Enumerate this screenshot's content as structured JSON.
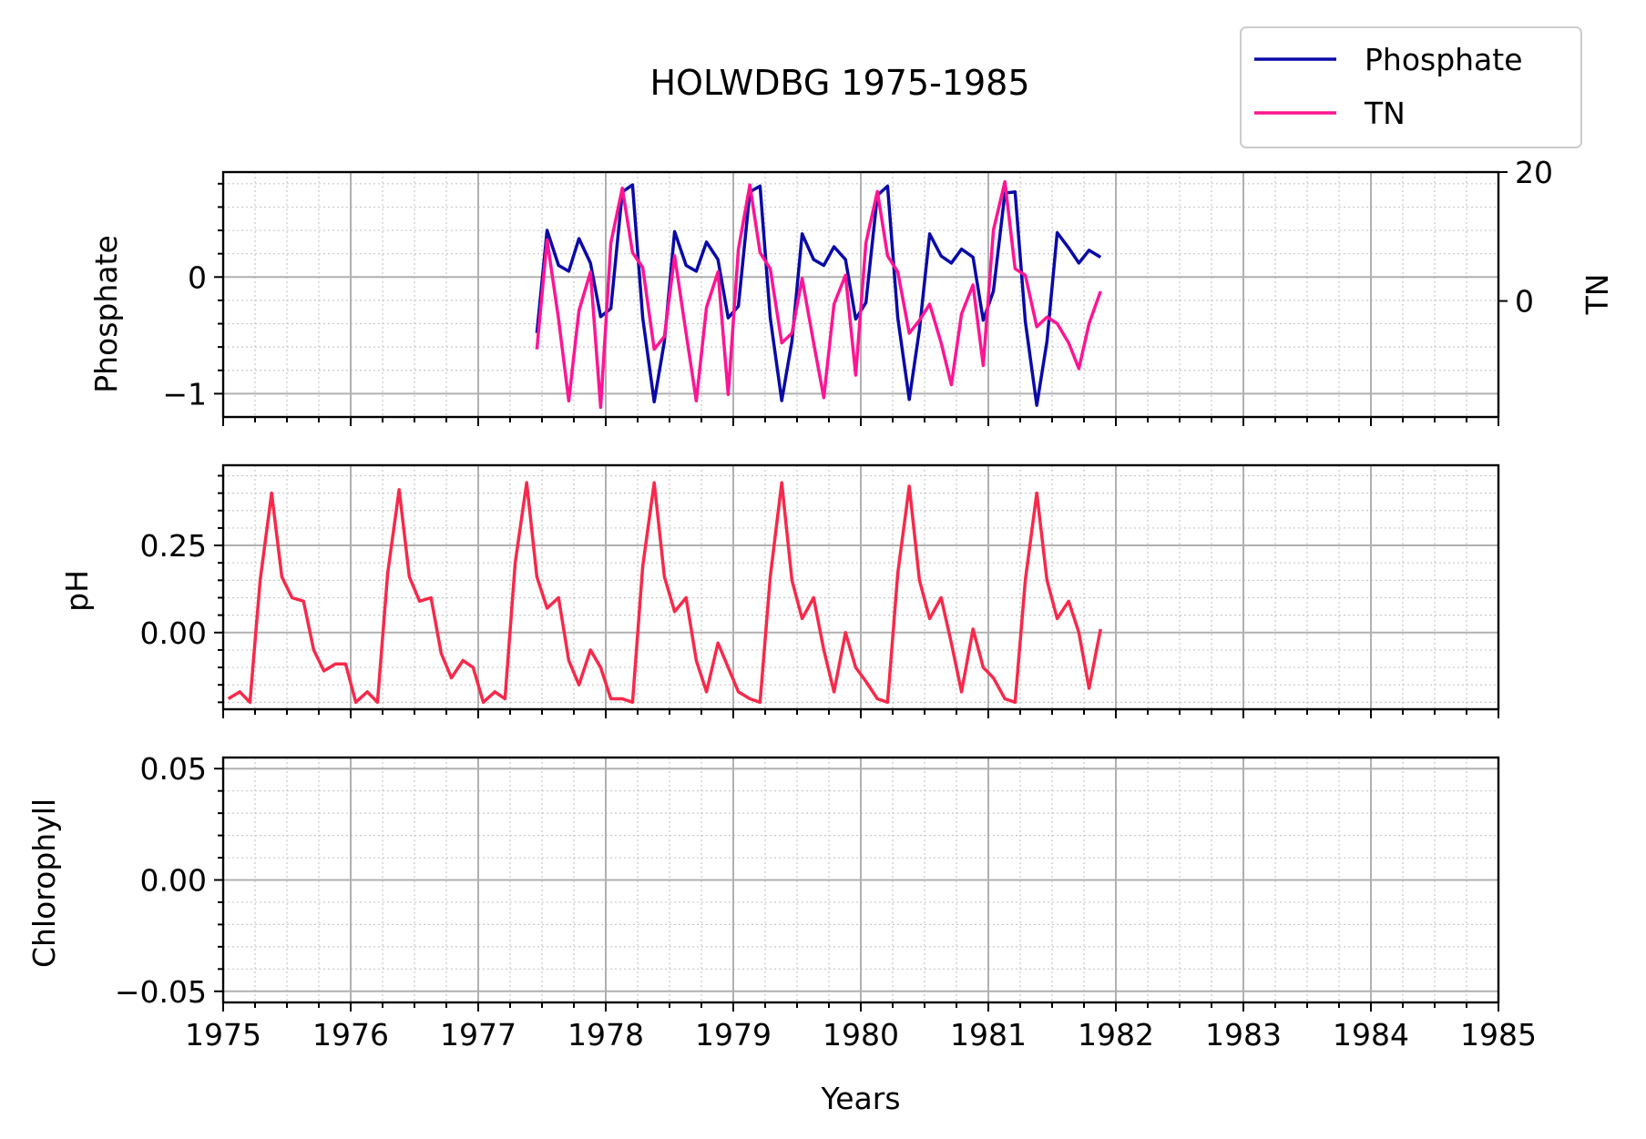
{
  "title": "HOLWDBG 1975-1985",
  "legend": {
    "items": [
      {
        "label": "Phosphate",
        "color": "#0a0aa8"
      },
      {
        "label": "TN",
        "color": "#ff1493"
      }
    ],
    "placement": "top-right"
  },
  "chart_data": [
    {
      "type": "line",
      "ylabel": "Phosphate",
      "y2label": "TN",
      "xlim": [
        1975,
        1985
      ],
      "ylim": [
        -1.2,
        0.9
      ],
      "y2lim": [
        -18,
        20
      ],
      "yticks": [
        {
          "v": 0,
          "label": "0"
        },
        {
          "v": -1,
          "label": "−1"
        }
      ],
      "y2ticks": [
        {
          "v": 20,
          "label": "20"
        },
        {
          "v": 0,
          "label": "0"
        }
      ],
      "grid": true,
      "series": [
        {
          "name": "Phosphate",
          "axis": "left",
          "color": "#0a0aa8",
          "x": [
            1977.46,
            1977.54,
            1977.63,
            1977.71,
            1977.79,
            1977.88,
            1977.96,
            1978.04,
            1978.13,
            1978.21,
            1978.29,
            1978.38,
            1978.46,
            1978.54,
            1978.63,
            1978.71,
            1978.79,
            1978.88,
            1978.96,
            1979.04,
            1979.13,
            1979.21,
            1979.29,
            1979.38,
            1979.46,
            1979.54,
            1979.63,
            1979.71,
            1979.79,
            1979.88,
            1979.96,
            1980.04,
            1980.13,
            1980.21,
            1980.29,
            1980.38,
            1980.46,
            1980.54,
            1980.63,
            1980.71,
            1980.79,
            1980.88,
            1980.96,
            1981.04,
            1981.13,
            1981.21,
            1981.29,
            1981.38,
            1981.46,
            1981.54,
            1981.63,
            1981.71,
            1981.79,
            1981.88,
            1981.96
          ],
          "y": [
            -0.48,
            0.4,
            0.1,
            0.05,
            0.33,
            0.12,
            -0.34,
            -0.27,
            0.73,
            0.79,
            -0.35,
            -1.07,
            -0.55,
            0.39,
            0.1,
            0.05,
            0.3,
            0.15,
            -0.35,
            -0.25,
            0.73,
            0.78,
            -0.35,
            -1.06,
            -0.55,
            0.37,
            0.15,
            0.1,
            0.26,
            0.15,
            -0.36,
            -0.22,
            0.7,
            0.78,
            -0.35,
            -1.05,
            -0.45,
            0.37,
            0.18,
            0.12,
            0.24,
            0.17,
            -0.37,
            -0.12,
            0.72,
            0.73,
            -0.38,
            -1.1,
            -0.55,
            0.38,
            0.25,
            0.12,
            0.23,
            0.17,
            null
          ]
        },
        {
          "name": "TN",
          "axis": "right",
          "color": "#ff1493",
          "x": [
            1977.46,
            1977.54,
            1977.63,
            1977.71,
            1977.79,
            1977.88,
            1977.96,
            1978.04,
            1978.13,
            1978.21,
            1978.29,
            1978.38,
            1978.46,
            1978.54,
            1978.63,
            1978.71,
            1978.79,
            1978.88,
            1978.96,
            1979.04,
            1979.13,
            1979.21,
            1979.29,
            1979.38,
            1979.46,
            1979.54,
            1979.63,
            1979.71,
            1979.79,
            1979.88,
            1979.96,
            1980.04,
            1980.13,
            1980.21,
            1980.29,
            1980.38,
            1980.46,
            1980.54,
            1980.63,
            1980.71,
            1980.79,
            1980.88,
            1980.96,
            1981.04,
            1981.13,
            1981.21,
            1981.29,
            1981.38,
            1981.46,
            1981.54,
            1981.63,
            1981.71,
            1981.79,
            1981.88,
            1981.96
          ],
          "y": [
            -7.5,
            9.5,
            -2.8,
            -15.5,
            -1.5,
            4.5,
            -16.5,
            9.0,
            17.5,
            7.5,
            5.2,
            -7.5,
            -5.5,
            7.0,
            -5.0,
            -15.5,
            -1.0,
            4.5,
            -14.5,
            8.0,
            18.0,
            7.5,
            5.0,
            -6.5,
            -5.0,
            3.5,
            -6.5,
            -15.0,
            -0.5,
            4.0,
            -11.5,
            9.0,
            17.0,
            7.0,
            4.5,
            -5.0,
            -3.0,
            -0.5,
            -6.5,
            -13.0,
            -2.0,
            2.5,
            -10.0,
            11.0,
            18.5,
            5.0,
            4.0,
            -4.0,
            -2.5,
            -3.5,
            -6.5,
            -10.5,
            -3.5,
            1.5,
            null
          ]
        }
      ]
    },
    {
      "type": "line",
      "ylabel": "pH",
      "xlim": [
        1975,
        1985
      ],
      "ylim": [
        -0.22,
        0.48
      ],
      "yticks": [
        {
          "v": 0.25,
          "label": "0.25"
        },
        {
          "v": 0,
          "label": "0.00"
        }
      ],
      "grid": true,
      "series": [
        {
          "name": "pH",
          "axis": "left",
          "color": "#f7294a",
          "x": [
            1975.04,
            1975.13,
            1975.21,
            1975.29,
            1975.38,
            1975.46,
            1975.54,
            1975.63,
            1975.71,
            1975.79,
            1975.88,
            1975.96,
            1976.04,
            1976.13,
            1976.21,
            1976.29,
            1976.38,
            1976.46,
            1976.54,
            1976.63,
            1976.71,
            1976.79,
            1976.88,
            1976.96,
            1977.04,
            1977.13,
            1977.21,
            1977.29,
            1977.38,
            1977.46,
            1977.54,
            1977.63,
            1977.71,
            1977.79,
            1977.88,
            1977.96,
            1978.04,
            1978.13,
            1978.21,
            1978.29,
            1978.38,
            1978.46,
            1978.54,
            1978.63,
            1978.71,
            1978.79,
            1978.88,
            1978.96,
            1979.04,
            1979.13,
            1979.21,
            1979.29,
            1979.38,
            1979.46,
            1979.54,
            1979.63,
            1979.71,
            1979.79,
            1979.88,
            1979.96,
            1980.04,
            1980.13,
            1980.21,
            1980.29,
            1980.38,
            1980.46,
            1980.54,
            1980.63,
            1980.71,
            1980.79,
            1980.88,
            1980.96,
            1981.04,
            1981.13,
            1981.21,
            1981.29,
            1981.38,
            1981.46,
            1981.54,
            1981.63,
            1981.71,
            1981.79,
            1981.88,
            1981.96
          ],
          "y": [
            -0.19,
            -0.17,
            -0.2,
            0.15,
            0.4,
            0.16,
            0.1,
            0.09,
            -0.05,
            -0.11,
            -0.09,
            -0.09,
            -0.2,
            -0.17,
            -0.2,
            0.17,
            0.41,
            0.16,
            0.09,
            0.1,
            -0.06,
            -0.13,
            -0.08,
            -0.1,
            -0.2,
            -0.17,
            -0.19,
            0.2,
            0.43,
            0.16,
            0.07,
            0.1,
            -0.08,
            -0.15,
            -0.05,
            -0.1,
            -0.19,
            -0.19,
            -0.2,
            0.19,
            0.43,
            0.16,
            0.06,
            0.1,
            -0.08,
            -0.17,
            -0.03,
            -0.1,
            -0.17,
            -0.19,
            -0.2,
            0.16,
            0.43,
            0.15,
            0.04,
            0.1,
            -0.05,
            -0.17,
            0.0,
            -0.1,
            -0.14,
            -0.19,
            -0.2,
            0.17,
            0.42,
            0.15,
            0.04,
            0.1,
            -0.03,
            -0.17,
            0.01,
            -0.1,
            -0.13,
            -0.19,
            -0.2,
            0.15,
            0.4,
            0.15,
            0.04,
            0.09,
            0.0,
            -0.16,
            0.01,
            null
          ]
        }
      ]
    },
    {
      "type": "line",
      "ylabel": "Chlorophyll",
      "xlabel": "Years",
      "xlim": [
        1975,
        1985
      ],
      "ylim": [
        -0.055,
        0.055
      ],
      "yticks": [
        {
          "v": 0.05,
          "label": "0.05"
        },
        {
          "v": 0,
          "label": "0.00"
        },
        {
          "v": -0.05,
          "label": "−0.05"
        }
      ],
      "xticks": [
        "1975",
        "1976",
        "1977",
        "1978",
        "1979",
        "1980",
        "1981",
        "1982",
        "1983",
        "1984",
        "1985"
      ],
      "grid": true,
      "series": []
    }
  ]
}
